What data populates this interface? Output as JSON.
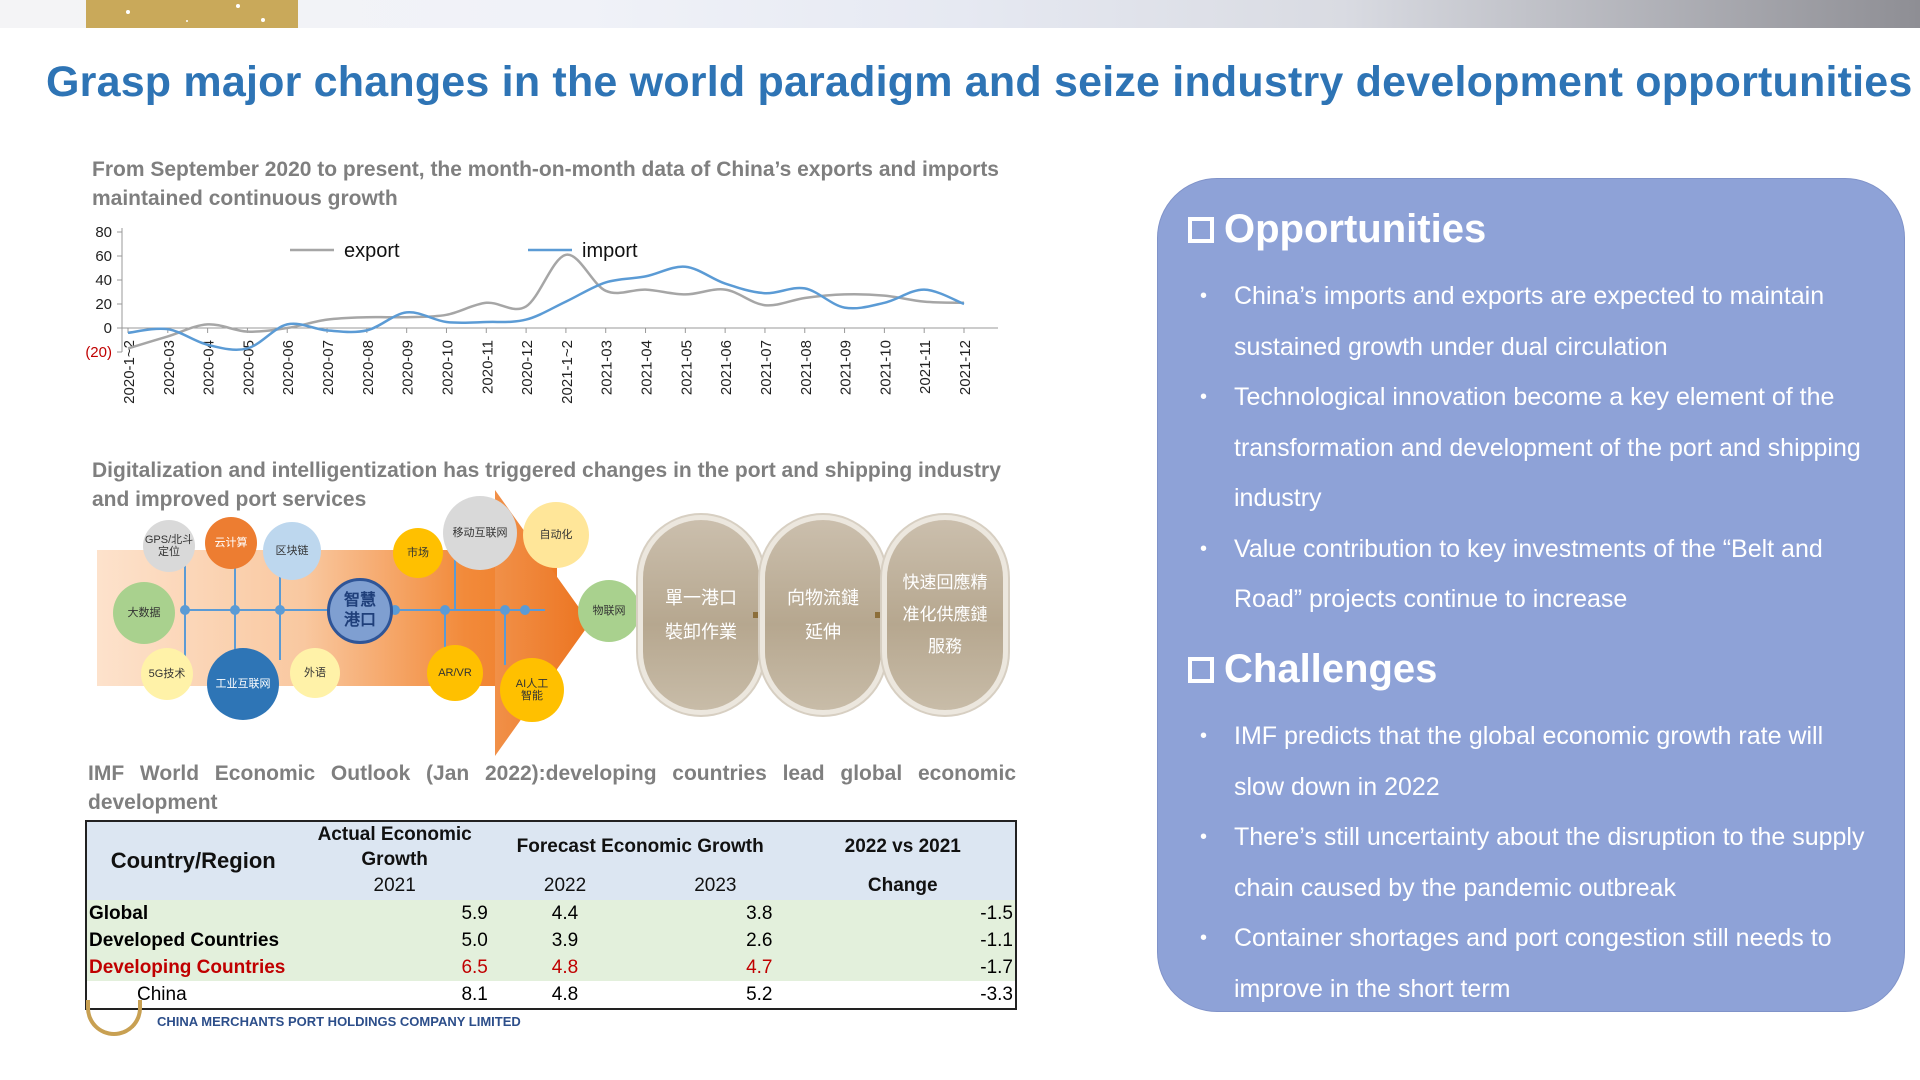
{
  "title": "Grasp major changes in the world paradigm and seize industry development opportunities",
  "section1_title": "From September 2020 to present, the month-on-month data of China’s exports and imports maintained continuous growth",
  "chart_data": {
    "type": "line",
    "title": "",
    "x": [
      "2020-1~2",
      "2020-03",
      "2020-04",
      "2020-05",
      "2020-06",
      "2020-07",
      "2020-08",
      "2020-09",
      "2020-10",
      "2020-11",
      "2020-12",
      "2021-1~2",
      "2021-03",
      "2021-04",
      "2021-05",
      "2021-06",
      "2021-07",
      "2021-08",
      "2021-09",
      "2021-10",
      "2021-11",
      "2021-12"
    ],
    "y_ticks": [
      "80",
      "60",
      "40",
      "20",
      "0",
      "(20)"
    ],
    "ylim": [
      -20,
      80
    ],
    "legend": "top",
    "grid": false,
    "series": [
      {
        "name": "export",
        "color": "#a6a6a6",
        "values": [
          -17,
          -7,
          3,
          -3,
          0,
          7,
          9,
          9,
          11,
          21,
          18,
          61,
          31,
          32,
          28,
          32,
          19,
          25,
          28,
          27,
          22,
          21
        ]
      },
      {
        "name": "import",
        "color": "#5b9bd5",
        "values": [
          -4,
          -1,
          -14,
          -17,
          3,
          -2,
          -2,
          13,
          5,
          5,
          7,
          22,
          38,
          43,
          51,
          37,
          29,
          33,
          17,
          21,
          32,
          20
        ]
      }
    ]
  },
  "section2_title": "Digitalization and intelligentization has triggered changes in the port and shipping industry and improved port services",
  "diagram": {
    "center": "智慧港口",
    "nodes": [
      "GPS/北斗定位",
      "云计算",
      "区块链",
      "大数据",
      "5G技术",
      "工业互联网",
      "外语",
      "市场",
      "移动互联网",
      "自动化",
      "物联网",
      "AR/VR",
      "AI人工智能"
    ],
    "pills": [
      "單一港口裝卸作業",
      "向物流鏈延伸",
      "快速回應精准化供應鏈服務"
    ]
  },
  "section3_title": "IMF World Economic Outlook (Jan 2022):developing countries lead global economic development",
  "table": {
    "col_region": "Country/Region",
    "col_actual": "Actual Economic Growth",
    "col_forecast": "Forecast Economic Growth",
    "col_vs": "2022 vs 2021",
    "sub_2021": "2021",
    "sub_2022": "2022",
    "sub_2023": "2023",
    "sub_change": "Change",
    "rows": [
      {
        "name": "Global",
        "a2021": "5.9",
        "f2022": "4.4",
        "f2023": "3.8",
        "change": "-1.5"
      },
      {
        "name": "Developed Countries",
        "a2021": "5.0",
        "f2022": "3.9",
        "f2023": "2.6",
        "change": "-1.1"
      },
      {
        "name": "Developing Countries",
        "a2021": "6.5",
        "f2022": "4.8",
        "f2023": "4.7",
        "change": "-1.7"
      },
      {
        "name": "China",
        "a2021": "8.1",
        "f2022": "4.8",
        "f2023": "5.2",
        "change": "-3.3"
      }
    ]
  },
  "panel": {
    "opportunities_title": "Opportunities",
    "opportunities": [
      "China’s imports and exports are expected to maintain sustained growth under dual circulation",
      "Technological innovation become a key element of the transformation and development of the port and shipping industry",
      "Value contribution to key investments of the “Belt and Road” projects continue to increase"
    ],
    "challenges_title": "Challenges",
    "challenges": [
      "IMF predicts that the global economic growth rate will slow down in 2022",
      "There’s still uncertainty about the disruption to the supply chain caused by the pandemic outbreak",
      "Container shortages and port congestion still needs to improve in the short term"
    ]
  },
  "footer": "CHINA MERCHANTS PORT HOLDINGS COMPANY LIMITED"
}
